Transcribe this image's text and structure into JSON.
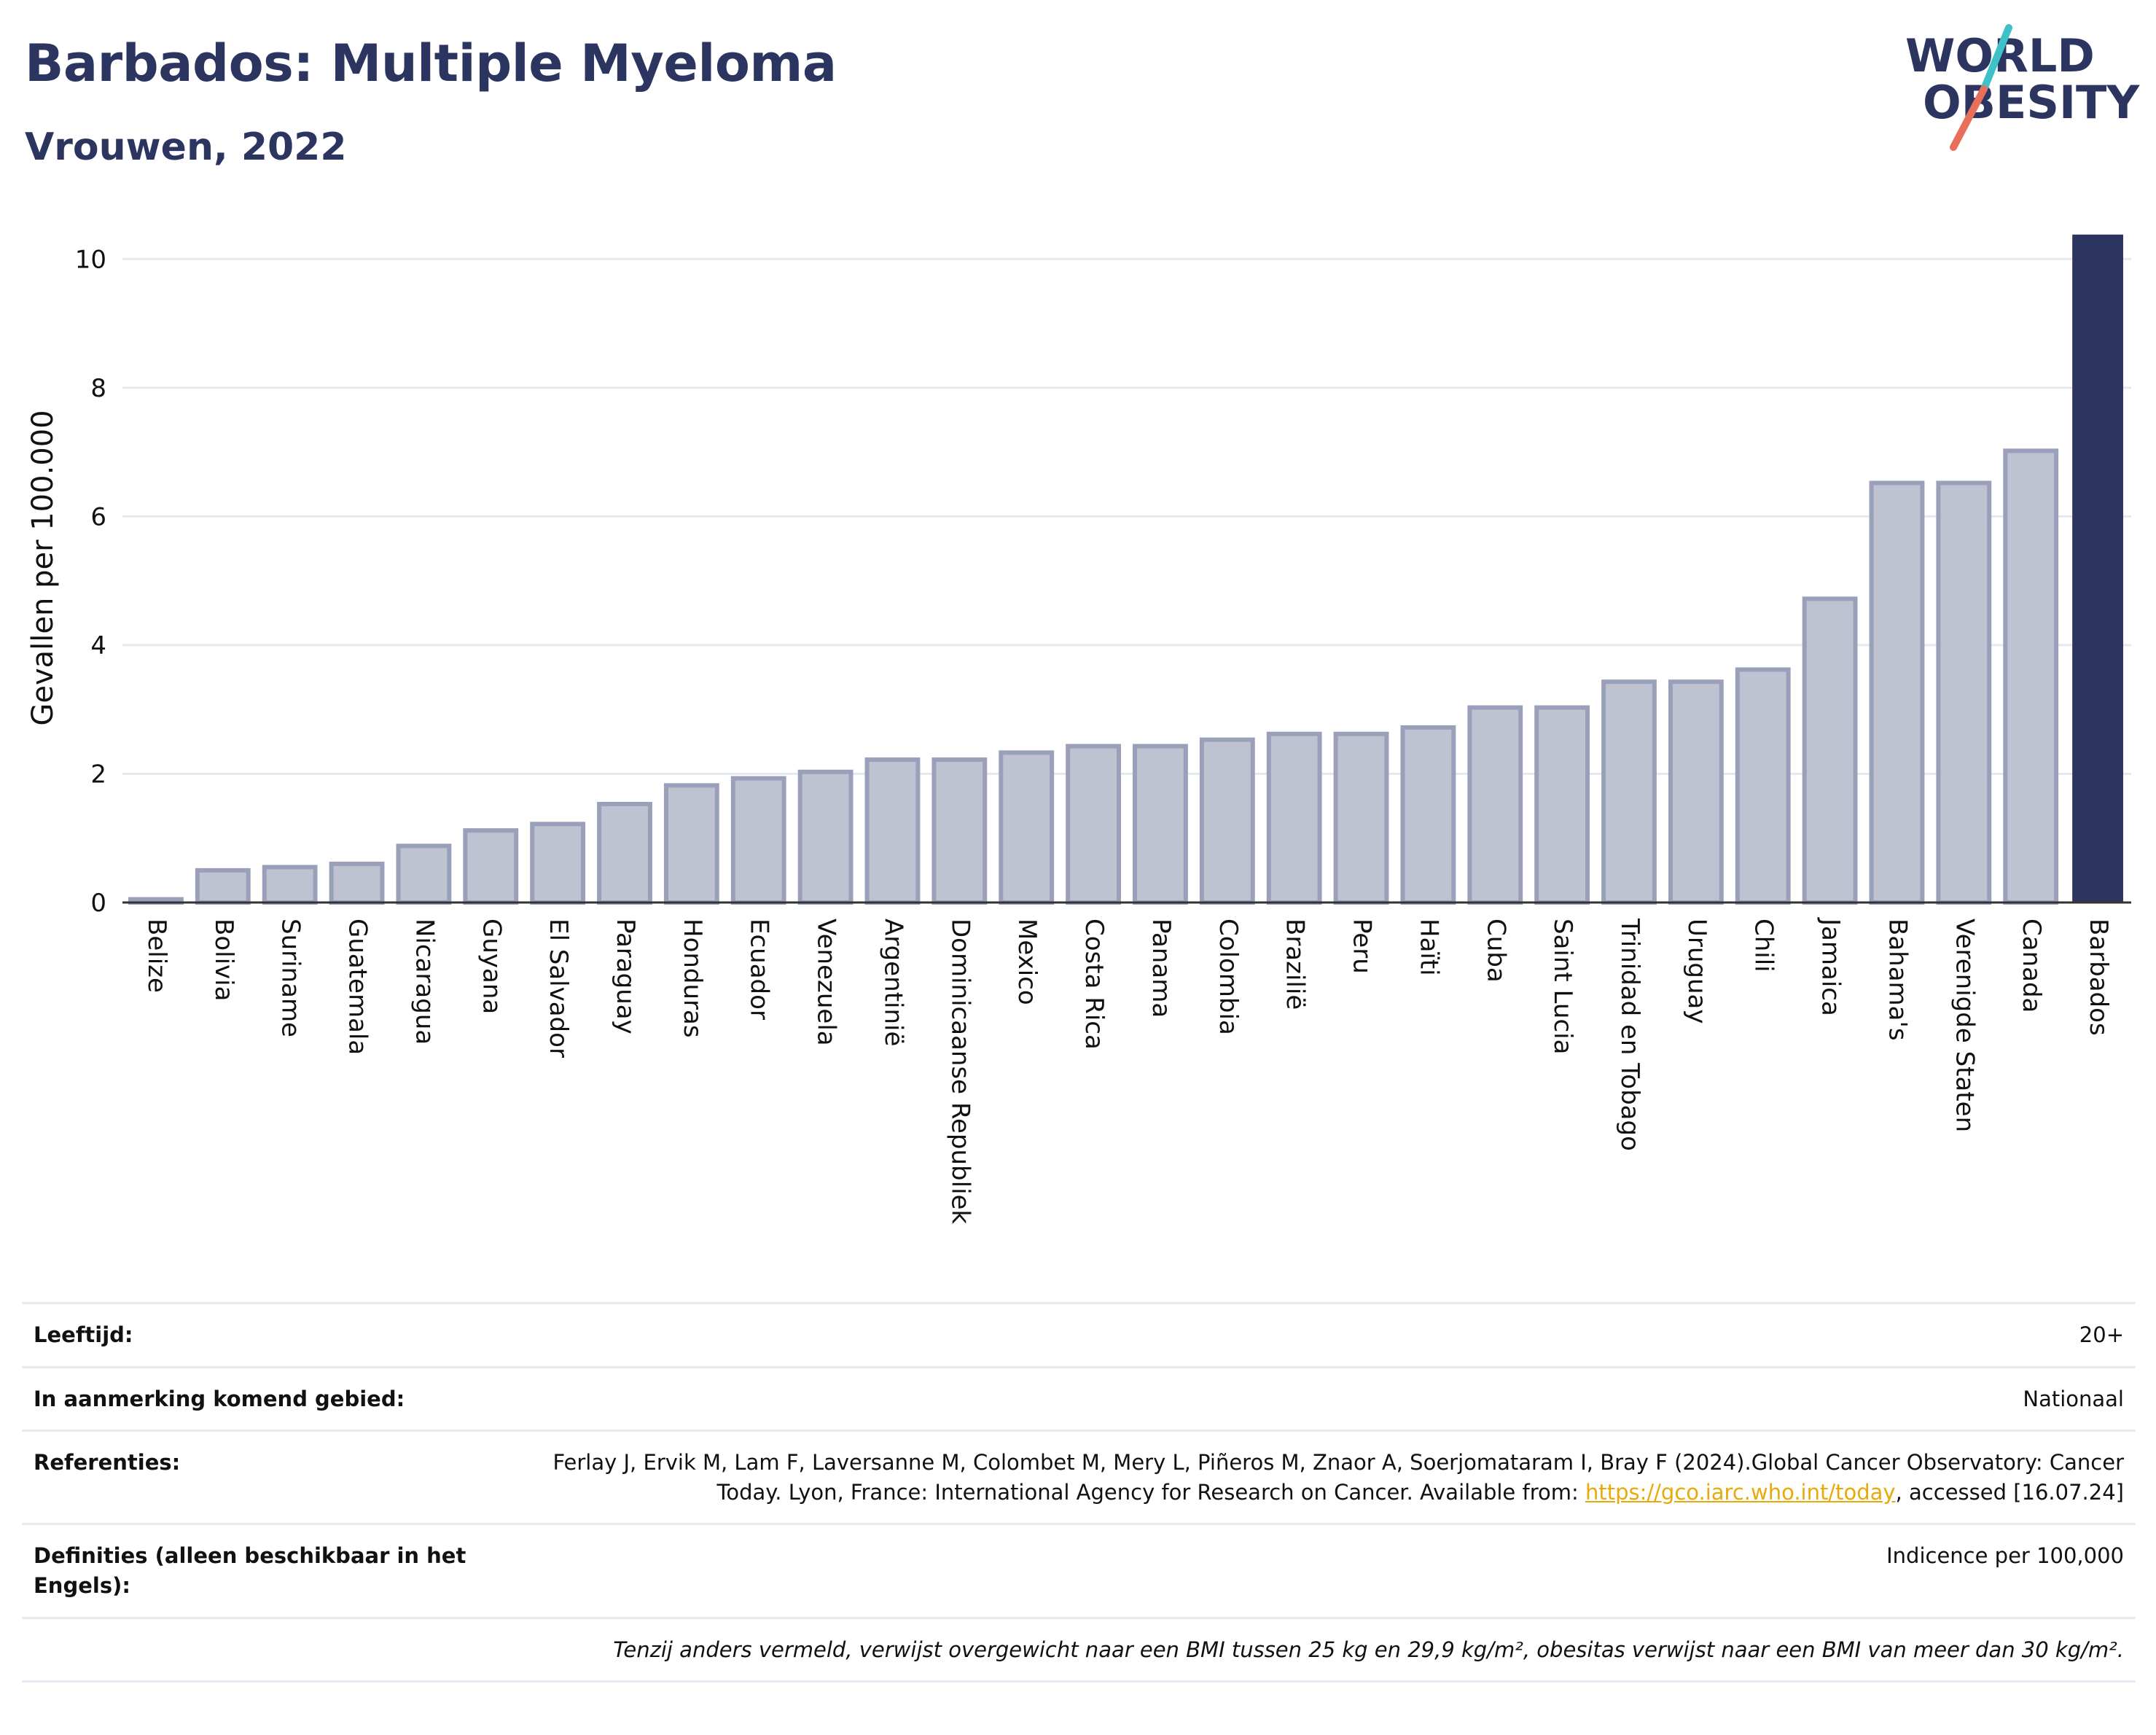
{
  "header": {
    "title": "Barbados: Multiple Myeloma",
    "subtitle": "Vrouwen, 2022",
    "logo_top": "WORLD",
    "logo_bottom": "OBESITY"
  },
  "colors": {
    "highlight_bar": "#2c3560",
    "other_bar_fill": "#bfc2d0",
    "other_bar_stroke": "#9aa0b9",
    "title": "#2c3560",
    "grid": "#e6e8ef",
    "logo_teal": "#3fc1c9",
    "logo_coral": "#e8705a"
  },
  "chart_data": {
    "type": "bar",
    "ylabel": "Gevallen per 100.000",
    "xlabel": "",
    "ylim": [
      0,
      10.4
    ],
    "yticks": [
      0,
      2,
      4,
      6,
      8,
      10
    ],
    "grid": true,
    "highlight": "Barbados",
    "categories": [
      "Belize",
      "Bolivia",
      "Suriname",
      "Guatemala",
      "Nicaragua",
      "Guyana",
      "El Salvador",
      "Paraguay",
      "Honduras",
      "Ecuador",
      "Venezuela",
      "Argentinië",
      "Dominicaanse Republiek",
      "Mexico",
      "Costa Rica",
      "Panama",
      "Colombia",
      "Brazilië",
      "Peru",
      "Haïti",
      "Cuba",
      "Saint Lucia",
      "Trinidad en Tobago",
      "Uruguay",
      "Chili",
      "Jamaica",
      "Bahama's",
      "Verenigde Staten",
      "Canada",
      "Barbados"
    ],
    "values": [
      0.05,
      0.5,
      0.55,
      0.6,
      0.88,
      1.12,
      1.22,
      1.53,
      1.82,
      1.93,
      2.03,
      2.22,
      2.22,
      2.33,
      2.43,
      2.43,
      2.53,
      2.62,
      2.62,
      2.72,
      3.03,
      3.03,
      3.43,
      3.43,
      3.62,
      4.72,
      6.52,
      6.52,
      7.02,
      10.38
    ]
  },
  "info": {
    "age_label": "Leeftijd:",
    "age_value": "20+",
    "region_label": "In aanmerking komend gebied:",
    "region_value": "Nationaal",
    "refs_label": "Referenties:",
    "refs_text": "Ferlay J, Ervik M, Lam F, Laversanne M, Colombet M, Mery L, Piñeros M, Znaor A, Soerjomataram I, Bray F (2024).Global Cancer Observatory: Cancer Today. Lyon, France: International Agency for Research on Cancer. Available from: ",
    "refs_link": "https://gco.iarc.who.int/today",
    "refs_suffix": ", accessed [16.07.24]",
    "defs_label": "Definities (alleen beschikbaar in het Engels):",
    "defs_value": "Indicence per 100,000",
    "note": "Tenzij anders vermeld, verwijst overgewicht naar een BMI tussen 25 kg en 29,9 kg/m², obesitas verwijst naar een BMI van meer dan 30 kg/m²."
  }
}
